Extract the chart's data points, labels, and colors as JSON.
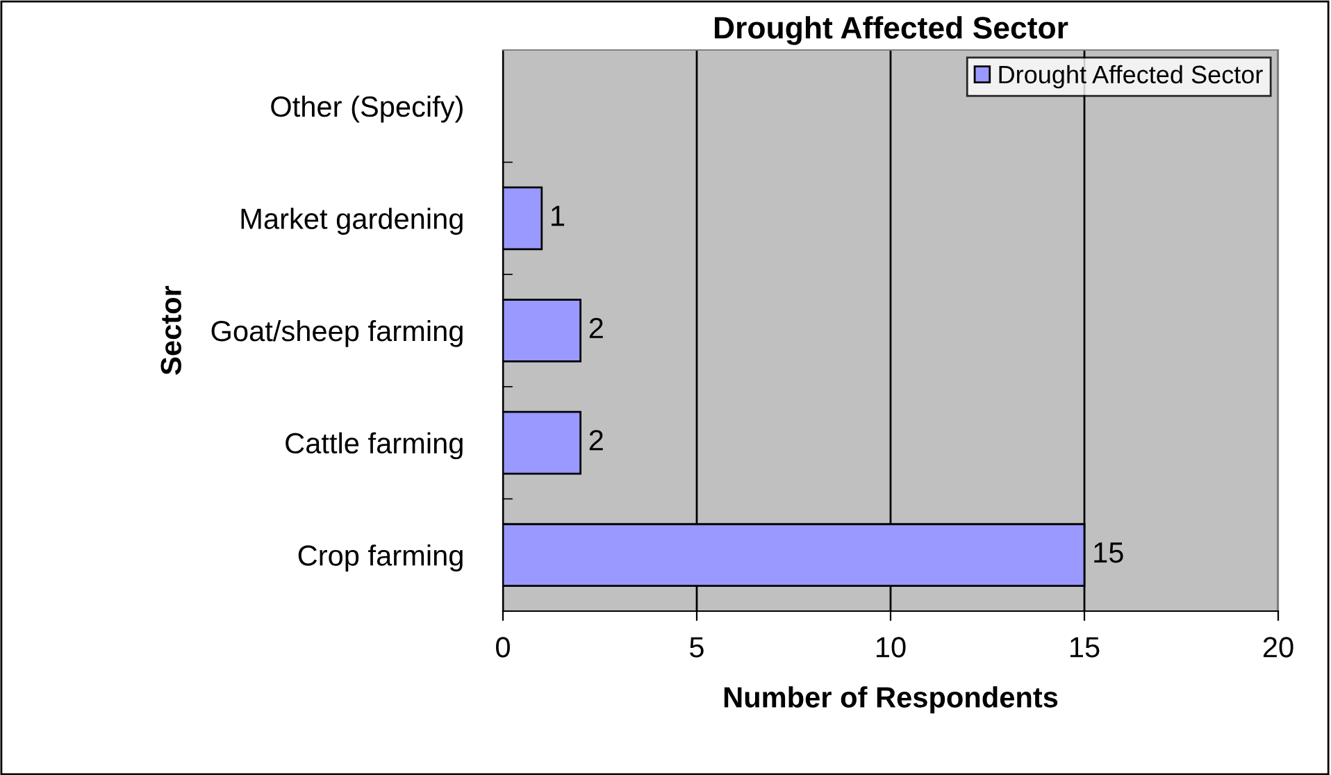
{
  "chart_data": {
    "type": "bar",
    "orientation": "horizontal",
    "title": "Drought Affected Sector",
    "xlabel": "Number of Respondents",
    "ylabel": "Sector",
    "categories": [
      "Other (Specify)",
      "Market gardening",
      "Goat/sheep farming",
      "Cattle farming",
      "Crop farming"
    ],
    "series": [
      {
        "name": "Drought Affected Sector",
        "color": "#9999ff",
        "values": [
          null,
          1,
          2,
          2,
          15
        ]
      }
    ],
    "xlim": [
      0,
      20
    ],
    "xticks": [
      0,
      5,
      10,
      15,
      20
    ],
    "grid": "x",
    "legend": "top right",
    "data_labels": true
  }
}
